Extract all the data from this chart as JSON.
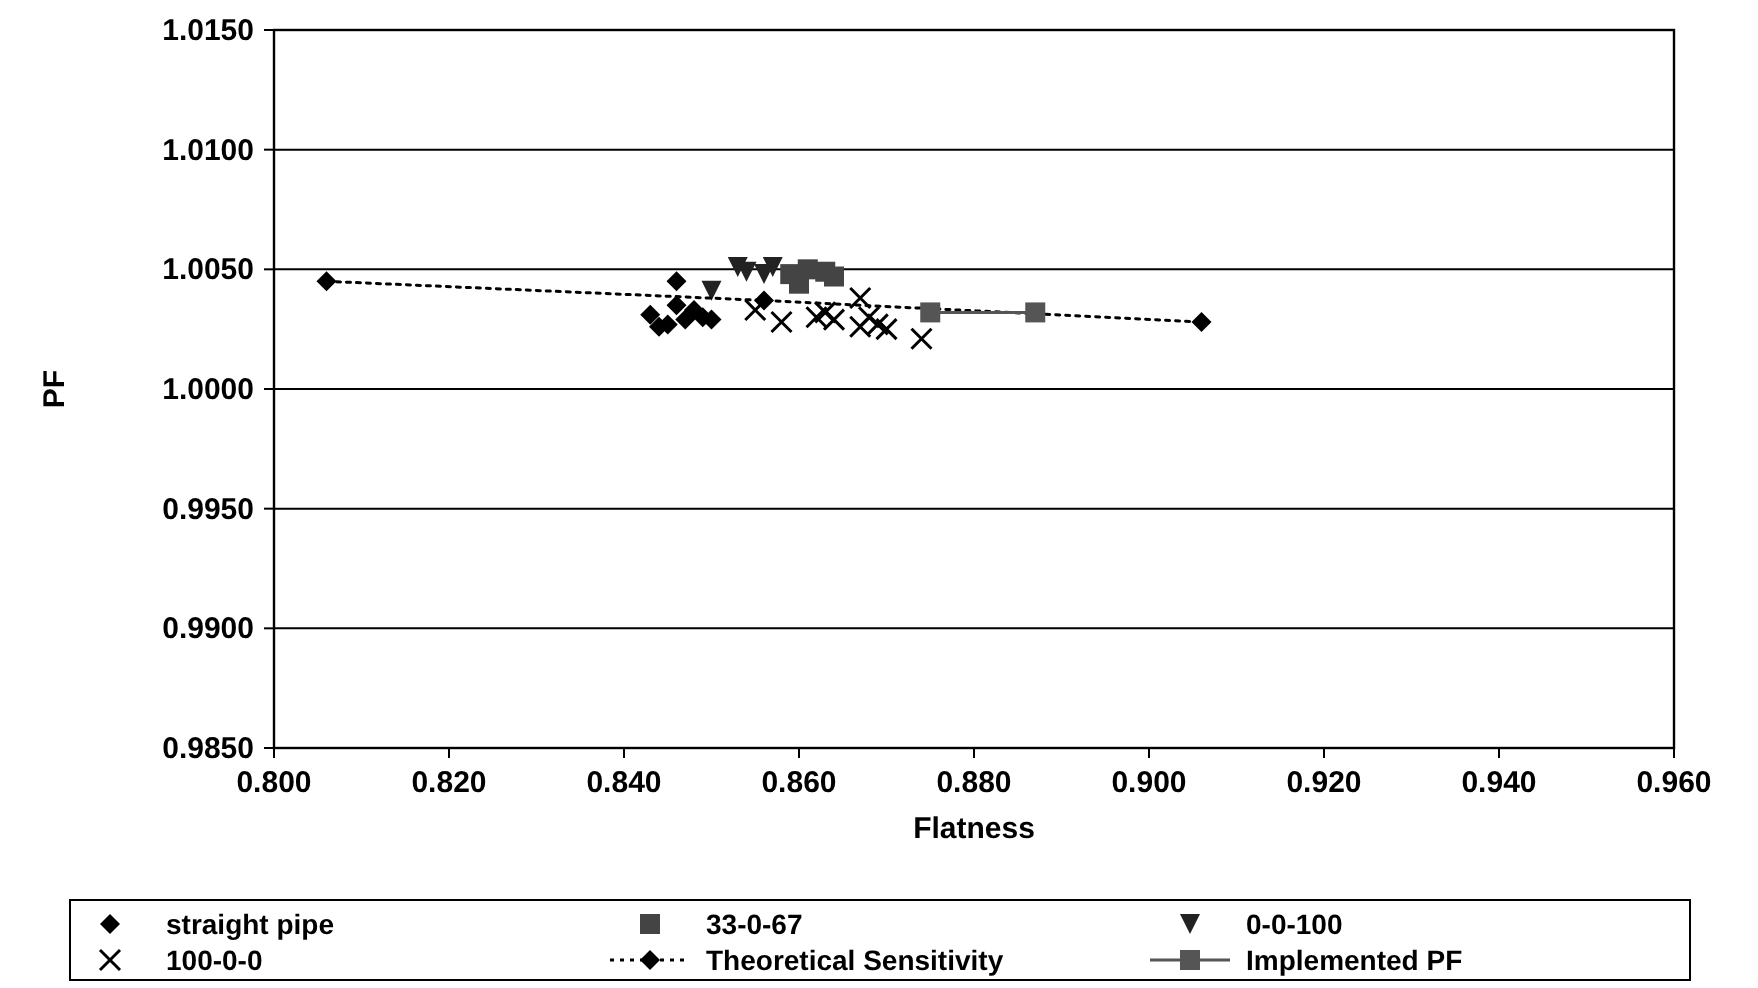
{
  "chart_data": {
    "type": "scatter",
    "xlabel": "Flatness",
    "ylabel": "PF",
    "xlim": [
      0.8,
      0.96
    ],
    "xticks": [
      {
        "value": 0.8,
        "label": "0.800"
      },
      {
        "value": 0.82,
        "label": "0.820"
      },
      {
        "value": 0.84,
        "label": "0.840"
      },
      {
        "value": 0.86,
        "label": "0.860"
      },
      {
        "value": 0.88,
        "label": "0.880"
      },
      {
        "value": 0.9,
        "label": "0.900"
      },
      {
        "value": 0.92,
        "label": "0.920"
      },
      {
        "value": 0.94,
        "label": "0.940"
      },
      {
        "value": 0.96,
        "label": "0.960"
      }
    ],
    "ylim": [
      0.985,
      1.015
    ],
    "yticks": [
      {
        "value": 0.985,
        "label": "0.9850"
      },
      {
        "value": 0.99,
        "label": "0.9900"
      },
      {
        "value": 0.995,
        "label": "0.9950"
      },
      {
        "value": 1,
        "label": "1.0000"
      },
      {
        "value": 1.005,
        "label": "1.0050"
      },
      {
        "value": 1.01,
        "label": "1.0100"
      },
      {
        "value": 1.015,
        "label": "1.0150"
      }
    ],
    "grid": "y",
    "legend": "bottom",
    "series": [
      {
        "name": "straight pipe",
        "marker": "diamond",
        "color": "#000000",
        "x": [
          0.846,
          0.843,
          0.845,
          0.847,
          0.848,
          0.846,
          0.849,
          0.844,
          0.85
        ],
        "values": [
          1.0045,
          1.0031,
          1.0027,
          1.0029,
          1.0033,
          1.0035,
          1.003,
          1.0026,
          1.0029
        ]
      },
      {
        "name": "33-0-67",
        "marker": "square",
        "color": "#444444",
        "x": [
          0.859,
          0.86,
          0.861,
          0.863,
          0.864
        ],
        "values": [
          1.0048,
          1.0044,
          1.005,
          1.0049,
          1.0047
        ]
      },
      {
        "name": "0-0-100",
        "marker": "triangle",
        "color": "#222222",
        "x": [
          0.853,
          0.854,
          0.856,
          0.857,
          0.85
        ],
        "values": [
          1.0051,
          1.0049,
          1.0048,
          1.0051,
          1.0041
        ]
      },
      {
        "name": "100-0-0",
        "marker": "cross",
        "color": "#000000",
        "x": [
          0.855,
          0.858,
          0.862,
          0.863,
          0.864,
          0.867,
          0.868,
          0.869,
          0.87,
          0.874,
          0.867
        ],
        "values": [
          1.0033,
          1.0028,
          1.003,
          1.0032,
          1.0029,
          1.0038,
          1.003,
          1.0027,
          1.0025,
          1.0021,
          1.0026
        ]
      },
      {
        "name": "Theoretical Sensitivity",
        "type": "line",
        "marker": "diamond",
        "line_style": "dotted",
        "color": "#000000",
        "x": [
          0.806,
          0.856,
          0.906
        ],
        "values": [
          1.0045,
          1.0037,
          1.0028
        ]
      },
      {
        "name": "Implemented PF",
        "type": "line",
        "marker": "square",
        "line_style": "solid",
        "color": "#555555",
        "x": [
          0.875,
          0.887
        ],
        "values": [
          1.0032,
          1.0032
        ]
      }
    ]
  }
}
